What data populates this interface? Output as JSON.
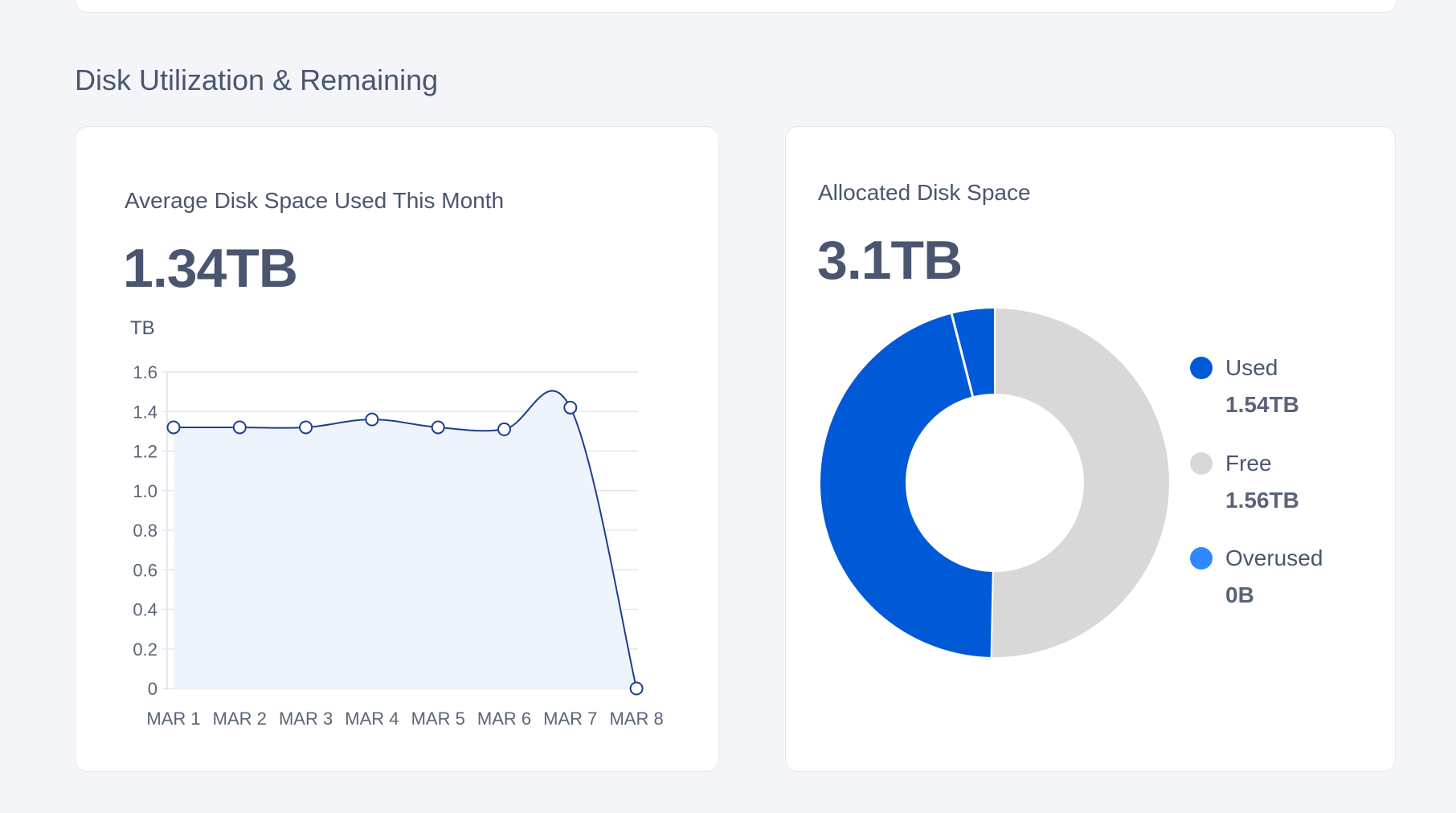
{
  "section": {
    "title": "Disk Utilization & Remaining"
  },
  "avg_card": {
    "subtitle": "Average Disk Space Used This Month",
    "value": "1.34TB"
  },
  "alloc_card": {
    "subtitle": "Allocated Disk Space",
    "value": "3.1TB"
  },
  "colors": {
    "used": "#0059d6",
    "free": "#d8d8d8",
    "overused": "#2f88ff",
    "line": "#1d3f8f",
    "area": "#eff3fb",
    "text": "#4a5670"
  },
  "legend": [
    {
      "key": "used",
      "label": "Used",
      "value": "1.54TB"
    },
    {
      "key": "free",
      "label": "Free",
      "value": "1.56TB"
    },
    {
      "key": "overused",
      "label": "Overused",
      "value": "0B"
    }
  ],
  "chart_data": [
    {
      "type": "area",
      "ylabel": "TB",
      "ylim": [
        0,
        1.6
      ],
      "yticks": [
        "0",
        "0.2",
        "0.4",
        "0.6",
        "0.8",
        "1.0",
        "1.2",
        "1.4",
        "1.6"
      ],
      "categories": [
        "MAR 1",
        "MAR 2",
        "MAR 3",
        "MAR 4",
        "MAR 5",
        "MAR 6",
        "MAR 7",
        "MAR 8"
      ],
      "values": [
        1.32,
        1.32,
        1.32,
        1.36,
        1.32,
        1.31,
        1.42,
        0
      ],
      "grid": true
    },
    {
      "type": "pie",
      "categories": [
        "Used",
        "Free",
        "Overused"
      ],
      "values": [
        1.54,
        1.56,
        0
      ],
      "units": "TB"
    }
  ]
}
